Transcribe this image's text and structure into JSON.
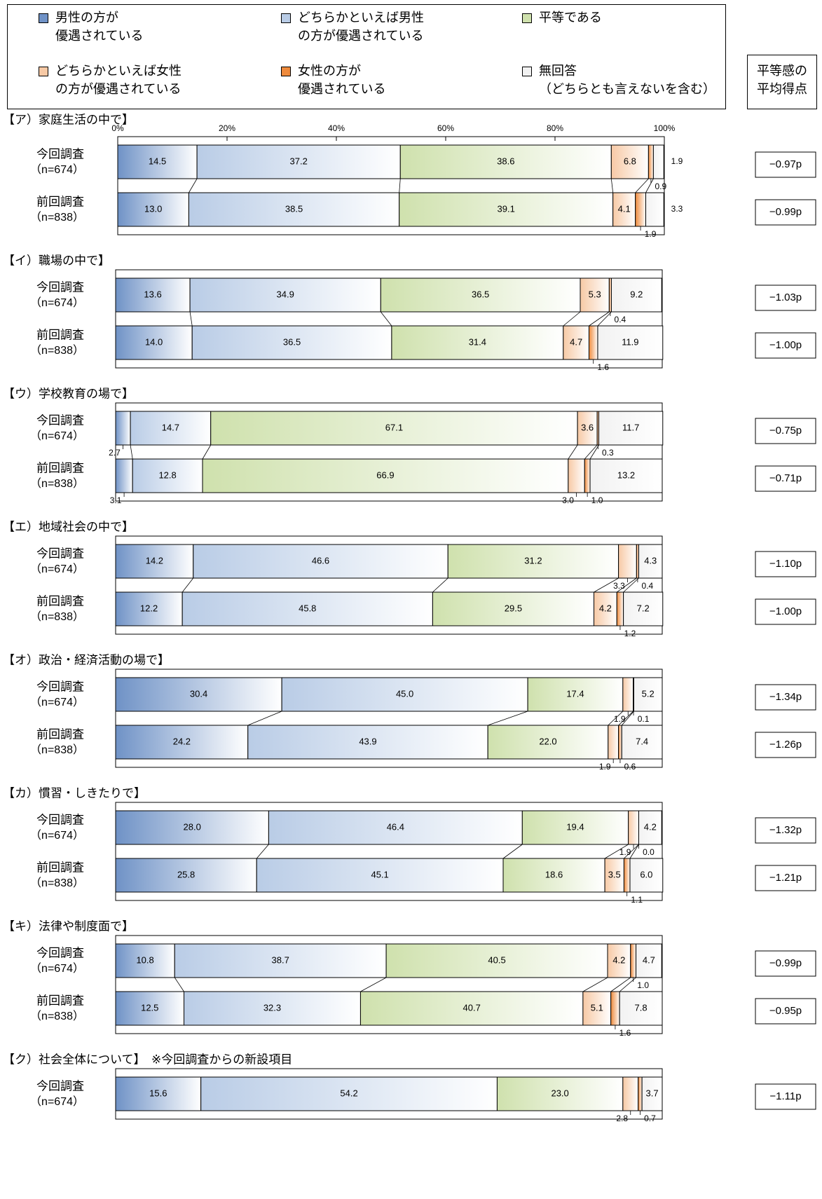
{
  "chart_data": {
    "type": "bar",
    "stacked": true,
    "orientation": "horizontal",
    "percent_axis_ticks": [
      "0%",
      "20%",
      "40%",
      "60%",
      "80%",
      "100%"
    ],
    "avg_header": "平等感の\n平均得点",
    "legend": [
      {
        "label": "男性の方が\n優遇されている",
        "color": "#6f92c6"
      },
      {
        "label": "どちらかといえば男性\nの方が優遇されている",
        "color": "#b9cce6"
      },
      {
        "label": "平等である",
        "color": "#cfe1ad"
      },
      {
        "label": "どちらかといえば女性\nの方が優遇されている",
        "color": "#f7c9a5"
      },
      {
        "label": "女性の方が\n優遇されている",
        "color": "#ee8a3c"
      },
      {
        "label": "無回答\n（どちらとも言えないを含む）",
        "color": "#f2f2f2"
      }
    ],
    "groups": [
      {
        "title": "【ア）家庭生活の中で】",
        "rows": [
          {
            "label": "今回調査",
            "n": "（n=674）",
            "values": [
              14.5,
              37.2,
              38.6,
              6.8,
              0.9,
              1.9
            ],
            "avg": "−0.97p"
          },
          {
            "label": "前回調査",
            "n": "（n=838）",
            "values": [
              13.0,
              38.5,
              39.1,
              4.1,
              1.9,
              3.3
            ],
            "avg": "−0.99p"
          }
        ]
      },
      {
        "title": "【イ）職場の中で】",
        "rows": [
          {
            "label": "今回調査",
            "n": "（n=674）",
            "values": [
              13.6,
              34.9,
              36.5,
              5.3,
              0.4,
              9.2
            ],
            "avg": "−1.03p"
          },
          {
            "label": "前回調査",
            "n": "（n=838）",
            "values": [
              14.0,
              36.5,
              31.4,
              4.7,
              1.6,
              11.9
            ],
            "avg": "−1.00p"
          }
        ]
      },
      {
        "title": "【ウ）学校教育の場で】",
        "rows": [
          {
            "label": "今回調査",
            "n": "（n=674）",
            "values": [
              2.7,
              14.7,
              67.1,
              3.6,
              0.3,
              11.7
            ],
            "avg": "−0.75p"
          },
          {
            "label": "前回調査",
            "n": "（n=838）",
            "values": [
              3.1,
              12.8,
              66.9,
              3.0,
              1.0,
              13.2
            ],
            "avg": "−0.71p"
          }
        ]
      },
      {
        "title": "【エ）地域社会の中で】",
        "rows": [
          {
            "label": "今回調査",
            "n": "（n=674）",
            "values": [
              14.2,
              46.6,
              31.2,
              3.3,
              0.4,
              4.3
            ],
            "avg": "−1.10p"
          },
          {
            "label": "前回調査",
            "n": "（n=838）",
            "values": [
              12.2,
              45.8,
              29.5,
              4.2,
              1.2,
              7.2
            ],
            "avg": "−1.00p"
          }
        ]
      },
      {
        "title": "【オ）政治・経済活動の場で】",
        "rows": [
          {
            "label": "今回調査",
            "n": "（n=674）",
            "values": [
              30.4,
              45.0,
              17.4,
              1.9,
              0.1,
              5.2
            ],
            "avg": "−1.34p"
          },
          {
            "label": "前回調査",
            "n": "（n=838）",
            "values": [
              24.2,
              43.9,
              22.0,
              1.9,
              0.6,
              7.4
            ],
            "avg": "−1.26p"
          }
        ]
      },
      {
        "title": "【カ）慣習・しきたりで】",
        "rows": [
          {
            "label": "今回調査",
            "n": "（n=674）",
            "values": [
              28.0,
              46.4,
              19.4,
              1.9,
              0.0,
              4.2
            ],
            "avg": "−1.32p"
          },
          {
            "label": "前回調査",
            "n": "（n=838）",
            "values": [
              25.8,
              45.1,
              18.6,
              3.5,
              1.1,
              6.0
            ],
            "avg": "−1.21p"
          }
        ]
      },
      {
        "title": "【キ）法律や制度面で】",
        "rows": [
          {
            "label": "今回調査",
            "n": "（n=674）",
            "values": [
              10.8,
              38.7,
              40.5,
              4.2,
              1.0,
              4.7
            ],
            "avg": "−0.99p"
          },
          {
            "label": "前回調査",
            "n": "（n=838）",
            "values": [
              12.5,
              32.3,
              40.7,
              5.1,
              1.6,
              7.8
            ],
            "avg": "−0.95p"
          }
        ]
      },
      {
        "title": "【ク）社会全体について】　※今回調査からの新設項目",
        "rows": [
          {
            "label": "今回調査",
            "n": "（n=674）",
            "values": [
              15.6,
              54.2,
              23.0,
              2.8,
              0.7,
              3.7
            ],
            "avg": "−1.11p"
          }
        ]
      }
    ]
  }
}
